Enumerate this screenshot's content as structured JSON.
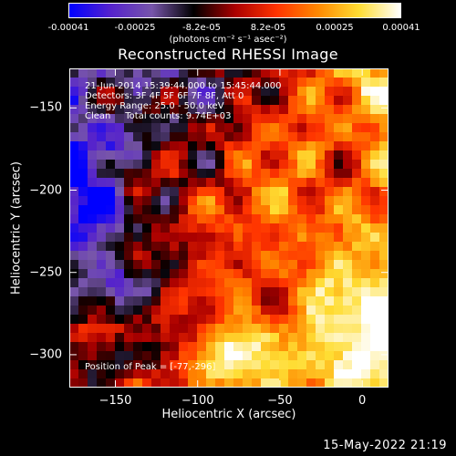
{
  "colorbar": {
    "tick_labels": [
      "-0.00041",
      "-0.00025",
      "-8.2e-05",
      "8.2e-05",
      "0.00025",
      "0.00041"
    ],
    "units": "(photons cm⁻² s⁻¹ asec⁻²)"
  },
  "annotations": {
    "time_range": "21-Jun-2014 15:39:44.000 to 15:45:44.000",
    "detectors": "Detectors: 3F 4F 5F 6F 7F 8F, Att 0",
    "energy_range": "Energy Range: 25.0 - 50.0 keV",
    "method_counts": "Clean     Total counts: 9.74E+03",
    "peak_position": "Position of Peak = [-77,-296]"
  },
  "footer": {
    "timestamp": "15-May-2022 21:19"
  },
  "chart_data": {
    "type": "heatmap",
    "title": "Reconstructed RHESSI Image",
    "xlabel": "Heliocentric X (arcsec)",
    "ylabel": "Heliocentric Y (arcsec)",
    "xlim": [
      -178,
      16
    ],
    "ylim": [
      -320,
      -126
    ],
    "x_ticks": [
      -150,
      -100,
      -50,
      0
    ],
    "y_ticks": [
      -150,
      -200,
      -250,
      -300
    ],
    "x_tick_labels": [
      "−150",
      "−100",
      "−50",
      "0"
    ],
    "y_tick_labels": [
      "−150",
      "−200",
      "−250",
      "−300"
    ],
    "colorbar_range": [
      -0.00041,
      0.00041
    ],
    "colormap_stops": [
      "#0000ff",
      "#5522cc",
      "#7755aa",
      "#000000",
      "#aa0000",
      "#ff3300",
      "#ff8800",
      "#ffdd33",
      "#ffffff"
    ],
    "peak": [
      -77,
      -296
    ],
    "grid": false
  }
}
